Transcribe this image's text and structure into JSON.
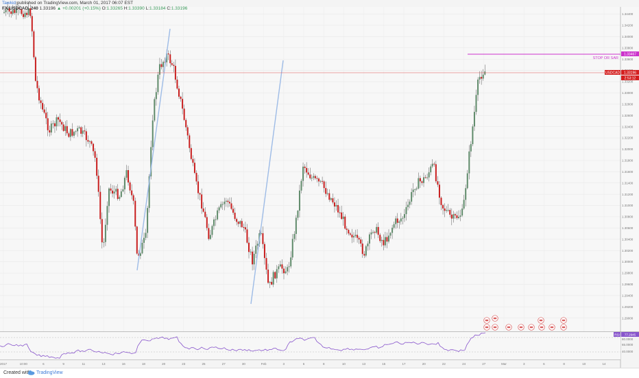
{
  "header": {
    "author": "Tawkid",
    "published": "published on TradingView.com, March 01, 2017 06:07 EST",
    "symbol": "FX:USDCAD, 240",
    "last": "1.33196",
    "change": "▲ +0.00201 (+0.15%)",
    "o_label": "O:",
    "o_value": "1.33265",
    "h_label": "H:",
    "h_value": "1.33390",
    "l_label": "L:",
    "l_value": "1.33184",
    "c_label": "C:",
    "c_value": "1.33196"
  },
  "footer": {
    "created": "Created with",
    "brand": "TradingView"
  },
  "colors": {
    "up": "#5f8a6a",
    "down": "#c81e1e",
    "trendline": "#9dbbe6",
    "stop": "#cc33cc",
    "price": "#e05050",
    "rsi": "#8855cc",
    "grid": "#e2e2e2"
  },
  "chart_data": [
    {
      "type": "candlestick",
      "symbol": "USDCAD",
      "timeframe": "240",
      "price_label": "USDCAD",
      "last_price": "1.33196",
      "countdown": "2:53:12",
      "stop_label": "STOP OR SAR",
      "stop_price": "1.33467",
      "ylim": [
        1.2885,
        1.3448
      ],
      "y_ticks": [
        "1.34400",
        "1.34200",
        "1.34000",
        "1.33800",
        "1.33600",
        "1.33400",
        "1.33200",
        "1.33000",
        "1.32800",
        "1.32600",
        "1.32400",
        "1.32200",
        "1.32000",
        "1.31800",
        "1.31600",
        "1.31400",
        "1.31200",
        "1.31000",
        "1.30800",
        "1.30600",
        "1.30400",
        "1.30200",
        "1.30000",
        "1.29800",
        "1.29600",
        "1.29400",
        "1.29200",
        "1.29000"
      ],
      "x_ticks": [
        "2017",
        "10:00",
        "6",
        "9",
        "11",
        "13",
        "16",
        "18",
        "20",
        "23",
        "25",
        "27",
        "30",
        "Feb",
        "3",
        "6",
        "8",
        "10",
        "13",
        "15",
        "17",
        "20",
        "22",
        "24",
        "27",
        "Mar",
        "3",
        "6",
        "8",
        "10",
        "14"
      ],
      "key_levels": {
        "high": 1.344,
        "low": 1.2955,
        "recent_low": 1.3035,
        "last": 1.33196
      }
    },
    {
      "type": "line",
      "name": "RSI",
      "value": "77.2945",
      "ticks": [
        "80.0000",
        "65.0000",
        "40.0000"
      ]
    }
  ]
}
